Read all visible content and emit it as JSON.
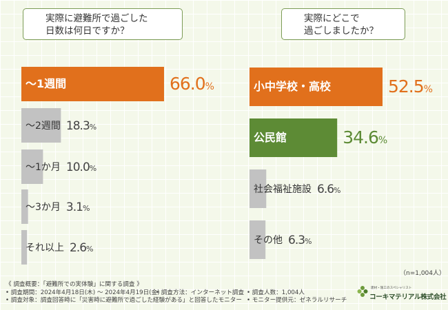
{
  "questions": {
    "left": [
      "実際に避難所で過ごした",
      "日数は何日ですか？"
    ],
    "right": [
      "実際にどこで",
      "過ごしましたか？"
    ]
  },
  "colors": {
    "highlight": "#e1701c",
    "green": "#5d8b35",
    "gray": "#c2c2c2",
    "border": "#7b9b55"
  },
  "chart_data": [
    {
      "type": "bar",
      "title": "実際に避難所で過ごした日数は何日ですか？",
      "unit": "%",
      "categories": [
        "〜1週間",
        "〜2週間",
        "〜1か月",
        "〜3か月",
        "それ以上"
      ],
      "values": [
        66.0,
        18.3,
        10.0,
        3.1,
        2.6
      ],
      "colors": [
        "#e1701c",
        "#c2c2c2",
        "#c2c2c2",
        "#c2c2c2",
        "#c2c2c2"
      ]
    },
    {
      "type": "bar",
      "title": "実際にどこで過ごしましたか？",
      "unit": "%",
      "categories": [
        "小中学校・高校",
        "公民館",
        "社会福祉施設",
        "その他"
      ],
      "values": [
        52.5,
        34.6,
        6.6,
        6.3
      ],
      "colors": [
        "#e1701c",
        "#5d8b35",
        "#c2c2c2",
        "#c2c2c2"
      ]
    }
  ],
  "sample_note": "（n=1,004人）",
  "footer": {
    "overview": "《 調査概要：「避難所での実体験」に関する調査 》",
    "period": "• 調査期間：2024年4月18日(木) ～ 2024年4月19日(金)",
    "method": "• 調査方法：インターネット調査",
    "people": "• 調査人数：1,004人",
    "target": "• 調査対象：調査回答時に「災害時に避難所で過ごした経験がある」と回答したモニター",
    "provider": "• モニター提供元：ゼネラルリサーチ"
  },
  "logo": {
    "tagline": "建材・施工のスペシャリスト",
    "name": "コーキマテリアル株式会社"
  }
}
